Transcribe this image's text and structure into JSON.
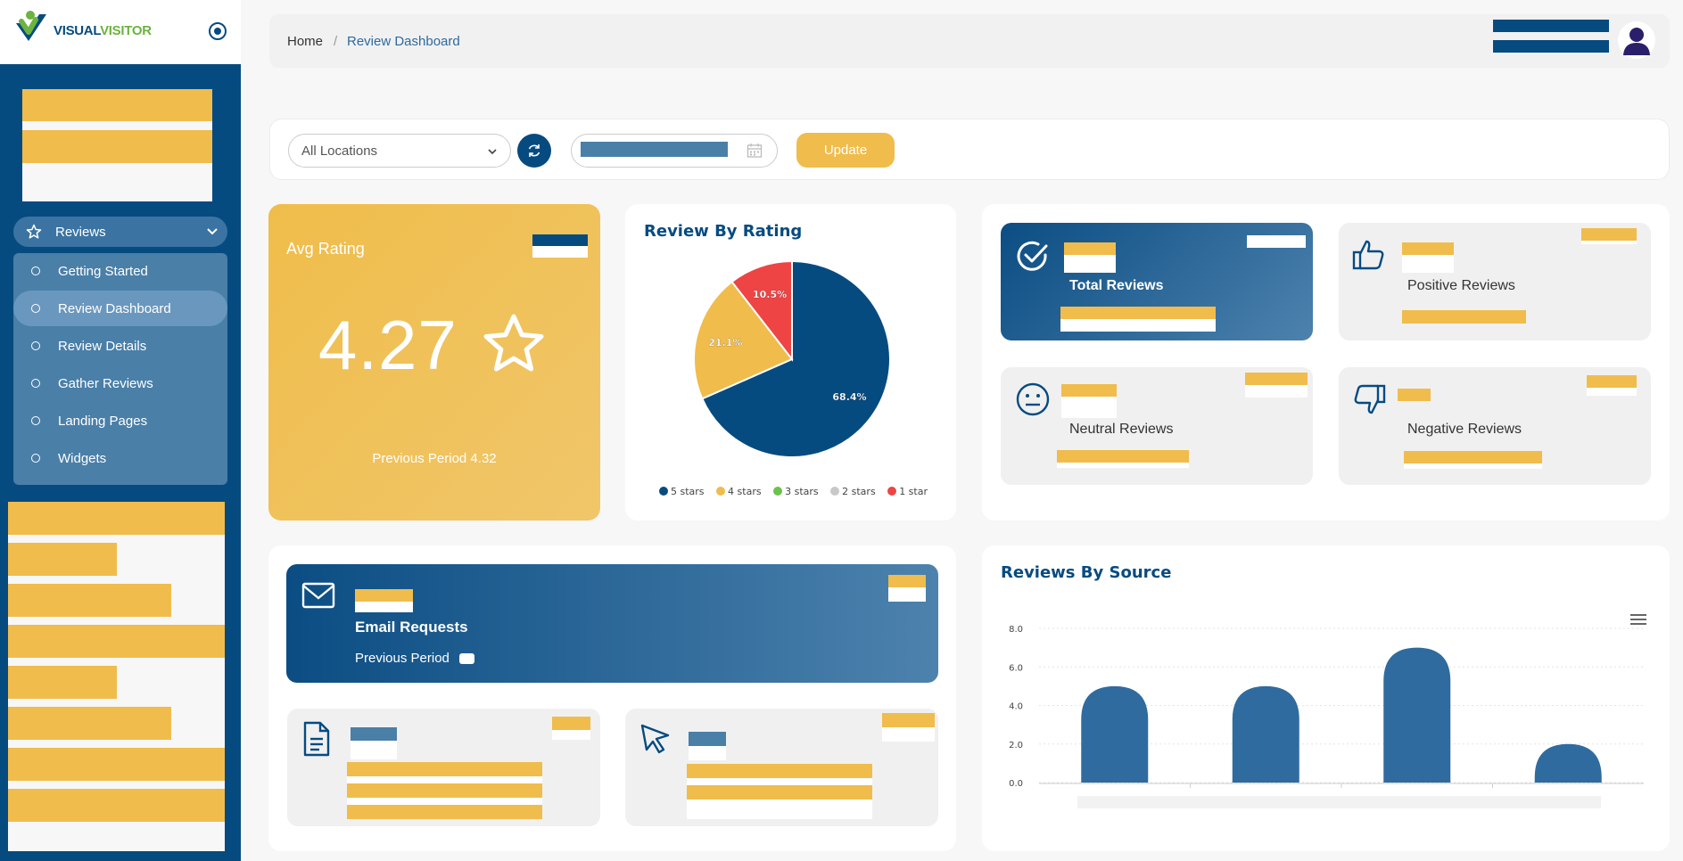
{
  "brand": {
    "name_part1": "VISUAL",
    "name_part2": "VISITOR"
  },
  "sidebar": {
    "group_label": "Reviews",
    "items": [
      {
        "label": "Getting Started"
      },
      {
        "label": "Review Dashboard"
      },
      {
        "label": "Review Details"
      },
      {
        "label": "Gather Reviews"
      },
      {
        "label": "Landing Pages"
      },
      {
        "label": "Widgets"
      }
    ]
  },
  "breadcrumb": {
    "home": "Home",
    "separator": "/",
    "current": "Review Dashboard"
  },
  "filters": {
    "location": "All Locations",
    "update_label": "Update"
  },
  "avg_rating": {
    "title": "Avg Rating",
    "value": "4.27",
    "previous": "Previous Period 4.32"
  },
  "stats": {
    "total": "Total Reviews",
    "positive": "Positive Reviews",
    "neutral": "Neutral Reviews",
    "negative": "Negative Reviews"
  },
  "email": {
    "title": "Email Requests",
    "previous": "Previous Period"
  },
  "chart_data": [
    {
      "type": "pie",
      "title": "Review By Rating",
      "categories": [
        "5 stars",
        "4 stars",
        "3 stars",
        "2 stars",
        "1 star"
      ],
      "values": [
        68.4,
        21.1,
        0,
        0,
        10.5
      ],
      "data_labels": [
        "68.4%",
        "21.1%",
        "",
        "",
        "10.5%"
      ],
      "colors": [
        "#064b80",
        "#f0bc4c",
        "#6cc24a",
        "#c8c8c8",
        "#ee4444"
      ],
      "legend": "bottom"
    },
    {
      "type": "bar",
      "title": "Reviews By Source",
      "values": [
        5,
        5,
        7,
        2
      ],
      "y_ticks": [
        "0.0",
        "2.0",
        "4.0",
        "6.0",
        "8.0"
      ],
      "ylim": [
        0,
        8
      ],
      "color": "#2f6b9e",
      "grid": true
    }
  ]
}
